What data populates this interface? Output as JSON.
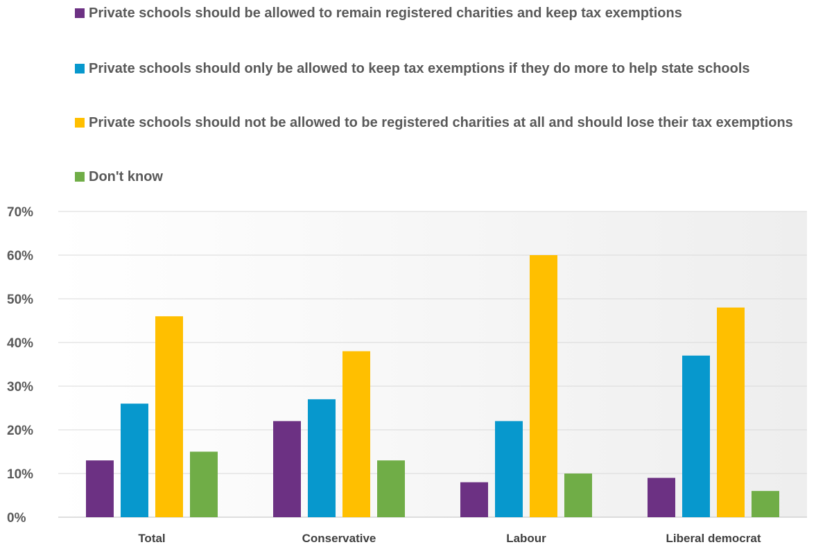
{
  "chart_data": {
    "type": "bar",
    "categories": [
      "Total",
      "Conservative",
      "Labour",
      "Liberal democrat"
    ],
    "series": [
      {
        "name": "Private schools should be allowed to remain registered charities and keep tax exemptions",
        "color": "#6c3183",
        "values": [
          13,
          22,
          8,
          9
        ]
      },
      {
        "name": "Private schools should only be allowed to keep tax exemptions if they do more to help state schools",
        "color": "#0798cd",
        "values": [
          26,
          27,
          22,
          37
        ]
      },
      {
        "name": "Private schools should not be allowed to be registered charities at all and should lose their tax exemptions",
        "color": "#ffbf00",
        "values": [
          46,
          38,
          60,
          48
        ]
      },
      {
        "name": "Don't know",
        "color": "#70ad47",
        "values": [
          15,
          13,
          10,
          6
        ]
      }
    ],
    "ylim": [
      0,
      70
    ],
    "yticks": [
      "0%",
      "10%",
      "20%",
      "30%",
      "40%",
      "50%",
      "60%",
      "70%"
    ],
    "grid": true,
    "legend_position": "top"
  }
}
